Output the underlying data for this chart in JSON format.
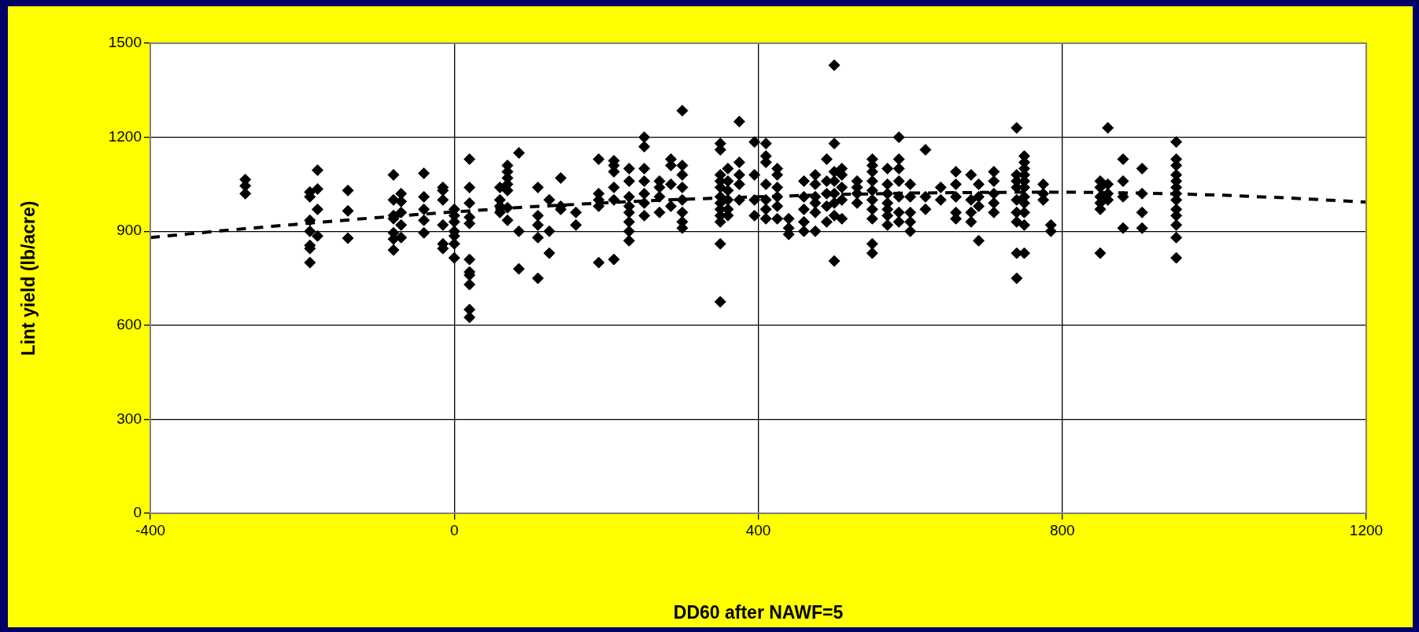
{
  "chart_data": {
    "type": "scatter",
    "xlabel": "DD60 after NAWF=5",
    "ylabel": "Lint yield (lb/acre)",
    "xlim": [
      -400,
      1200
    ],
    "ylim": [
      0,
      1500
    ],
    "xticks": [
      -400,
      0,
      400,
      800,
      1200
    ],
    "yticks": [
      0,
      300,
      600,
      900,
      1200,
      1500
    ],
    "grid": true,
    "marker": "diamond",
    "series": [
      {
        "color": "#000000",
        "x": [
          -275,
          -275,
          -275,
          -190,
          -190,
          -190,
          -190,
          -190,
          -190,
          -190,
          -180,
          -180,
          -180,
          -180,
          -140,
          -140,
          -140,
          -80,
          -80,
          -80,
          -80,
          -80,
          -80,
          -80,
          -70,
          -70,
          -70,
          -70,
          -70,
          -40,
          -40,
          -40,
          -40,
          -40,
          -15,
          -15,
          -15,
          -15,
          -15,
          -15,
          0,
          0,
          0,
          0,
          0,
          0,
          0,
          20,
          20,
          20,
          20,
          20,
          20,
          20,
          20,
          20,
          20,
          20,
          60,
          60,
          60,
          60,
          70,
          70,
          70,
          70,
          70,
          70,
          70,
          85,
          85,
          85,
          110,
          110,
          110,
          110,
          110,
          125,
          125,
          125,
          140,
          140,
          140,
          160,
          160,
          190,
          190,
          190,
          190,
          190,
          210,
          210,
          210,
          210,
          210,
          210,
          230,
          230,
          230,
          230,
          230,
          230,
          230,
          230,
          250,
          250,
          250,
          250,
          250,
          250,
          250,
          270,
          270,
          270,
          270,
          285,
          285,
          285,
          285,
          300,
          300,
          300,
          300,
          300,
          300,
          300,
          300,
          350,
          350,
          350,
          350,
          350,
          350,
          350,
          350,
          350,
          350,
          350,
          350,
          360,
          360,
          360,
          360,
          360,
          360,
          375,
          375,
          375,
          375,
          375,
          395,
          395,
          395,
          395,
          410,
          410,
          410,
          410,
          410,
          410,
          410,
          425,
          425,
          425,
          425,
          425,
          425,
          440,
          440,
          440,
          460,
          460,
          460,
          460,
          460,
          475,
          475,
          475,
          475,
          475,
          475,
          490,
          490,
          490,
          490,
          490,
          500,
          500,
          500,
          500,
          500,
          500,
          500,
          500,
          510,
          510,
          510,
          510,
          510,
          530,
          530,
          530,
          530,
          550,
          550,
          550,
          550,
          550,
          550,
          550,
          550,
          550,
          550,
          570,
          570,
          570,
          570,
          570,
          570,
          570,
          585,
          585,
          585,
          585,
          585,
          585,
          585,
          600,
          600,
          600,
          600,
          600,
          620,
          620,
          620,
          640,
          640,
          660,
          660,
          660,
          660,
          660,
          680,
          680,
          680,
          680,
          690,
          690,
          690,
          690,
          710,
          710,
          710,
          710,
          710,
          740,
          740,
          740,
          740,
          740,
          740,
          740,
          740,
          740,
          750,
          750,
          750,
          750,
          750,
          750,
          750,
          750,
          750,
          750,
          750,
          775,
          775,
          775,
          785,
          785,
          850,
          850,
          850,
          850,
          850,
          850,
          860,
          860,
          860,
          860,
          880,
          880,
          880,
          880,
          905,
          905,
          905,
          905,
          950,
          950,
          950,
          950,
          950,
          950,
          950,
          950,
          950,
          950,
          950,
          950,
          950
        ],
        "values": [
          1065,
          1045,
          1020,
          1025,
          1010,
          935,
          900,
          855,
          845,
          800,
          1095,
          1035,
          970,
          885,
          1030,
          965,
          878,
          1080,
          1000,
          950,
          940,
          895,
          875,
          840,
          1020,
          995,
          960,
          920,
          880,
          1085,
          1010,
          970,
          935,
          895,
          1040,
          1030,
          1000,
          920,
          860,
          845,
          970,
          950,
          930,
          900,
          885,
          860,
          815,
          1130,
          1040,
          990,
          945,
          925,
          810,
          770,
          760,
          730,
          650,
          625,
          1040,
          1000,
          980,
          960,
          1110,
          1090,
          1070,
          1050,
          1030,
          975,
          935,
          1150,
          900,
          780,
          1040,
          950,
          920,
          880,
          750,
          1000,
          900,
          830,
          1070,
          980,
          970,
          960,
          920,
          1130,
          1020,
          1000,
          980,
          800,
          1125,
          1110,
          1090,
          1040,
          1000,
          810,
          1100,
          1060,
          1010,
          980,
          960,
          930,
          900,
          870,
          1200,
          1170,
          1100,
          1060,
          1020,
          990,
          950,
          1060,
          1040,
          1010,
          960,
          1130,
          1110,
          1050,
          980,
          1285,
          1110,
          1080,
          1040,
          1000,
          960,
          930,
          910,
          1180,
          1160,
          1080,
          1060,
          1040,
          1010,
          990,
          970,
          950,
          930,
          860,
          675,
          1100,
          1060,
          1030,
          1000,
          970,
          950,
          1250,
          1120,
          1080,
          1050,
          1000,
          1185,
          1080,
          1000,
          950,
          1180,
          1140,
          1120,
          1050,
          1000,
          970,
          940,
          1100,
          1080,
          1040,
          1010,
          980,
          940,
          940,
          910,
          890,
          1060,
          1010,
          970,
          930,
          900,
          1080,
          1050,
          1010,
          990,
          960,
          900,
          1130,
          1060,
          1020,
          980,
          930,
          1430,
          1180,
          1090,
          1060,
          1020,
          990,
          950,
          805,
          1100,
          1080,
          1040,
          1000,
          940,
          1060,
          1040,
          1020,
          990,
          1130,
          1110,
          1090,
          1060,
          1030,
          1000,
          970,
          940,
          860,
          830,
          1100,
          1050,
          1020,
          990,
          970,
          950,
          920,
          1200,
          1130,
          1100,
          1060,
          1010,
          960,
          930,
          1050,
          1010,
          960,
          930,
          900,
          1160,
          1010,
          970,
          1040,
          1000,
          1090,
          1050,
          1010,
          960,
          940,
          1080,
          1000,
          960,
          930,
          1050,
          1010,
          980,
          870,
          1090,
          1060,
          1020,
          990,
          960,
          1230,
          1080,
          1060,
          1040,
          1000,
          960,
          930,
          830,
          750,
          1140,
          1120,
          1100,
          1080,
          1060,
          1040,
          1010,
          990,
          960,
          920,
          830,
          1050,
          1020,
          1000,
          920,
          900,
          1060,
          1040,
          1010,
          990,
          970,
          830,
          1230,
          1050,
          1020,
          1000,
          1130,
          1060,
          1010,
          910,
          1100,
          1020,
          960,
          910,
          1185,
          1130,
          1110,
          1080,
          1060,
          1040,
          1020,
          1000,
          970,
          950,
          920,
          880,
          815
        ]
      },
      {
        "type": "line",
        "color": "#000000",
        "marker": "none",
        "line_style": "dashed",
        "x": [
          -400,
          -300,
          -200,
          -100,
          0,
          100,
          200,
          300,
          400,
          500,
          600,
          700,
          800,
          900,
          1000,
          1100,
          1200
        ],
        "values": [
          880,
          903,
          924,
          944,
          962,
          978,
          991,
          1002,
          1010,
          1017,
          1022,
          1024,
          1025,
          1022,
          1016,
          1006,
          993
        ]
      }
    ]
  }
}
